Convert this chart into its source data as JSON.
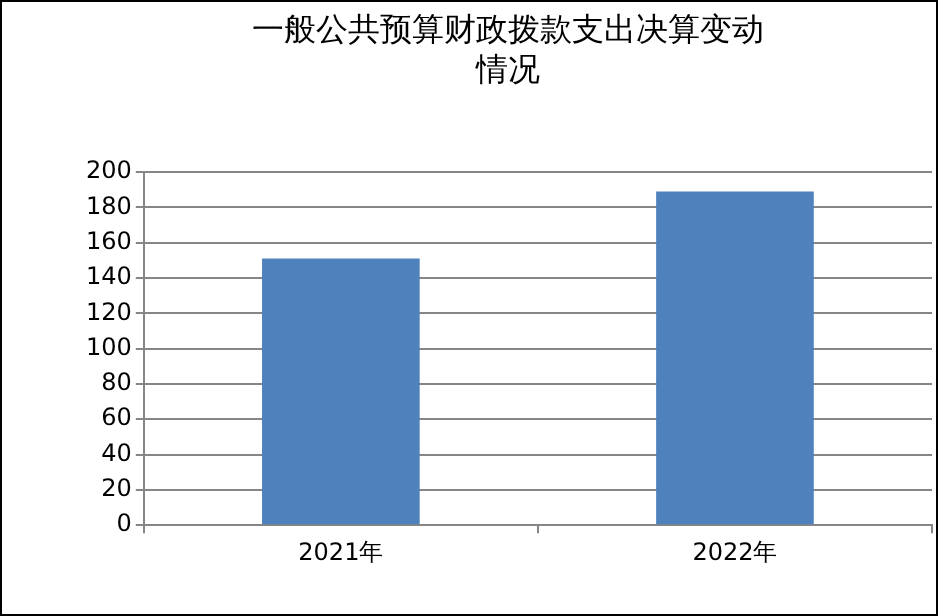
{
  "chart_data": {
    "type": "bar",
    "title": "一般公共预算财政拨款支出决算变动情况",
    "categories": [
      "2021年",
      "2022年"
    ],
    "values": [
      151,
      189
    ],
    "color": "#4f81bd",
    "ylim": [
      0,
      200
    ],
    "yticks": [
      0,
      20,
      40,
      60,
      80,
      100,
      120,
      140,
      160,
      180,
      200
    ],
    "grid": "y",
    "legend": false
  }
}
